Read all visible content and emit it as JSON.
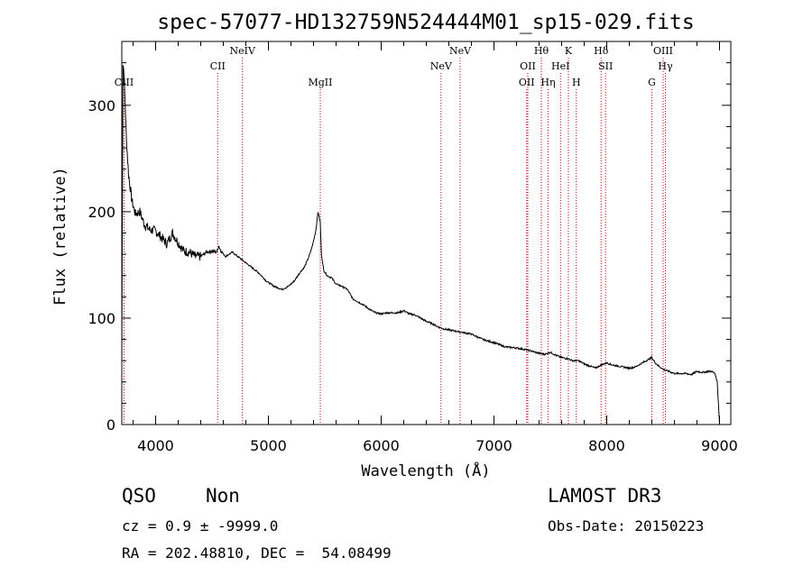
{
  "chart_data": {
    "type": "line",
    "title": "spec-57077-HD132759N524444M01_sp15-029.fits",
    "xlabel": "Wavelength (Å)",
    "ylabel": "Flux (relative)",
    "xlim": [
      3700,
      9100
    ],
    "ylim": [
      0,
      360
    ],
    "xticks": [
      4000,
      5000,
      6000,
      7000,
      8000,
      9000
    ],
    "yticks": [
      0,
      100,
      200,
      300
    ],
    "grid": false,
    "series": [
      {
        "name": "spectrum",
        "x": [
          3700,
          3710,
          3720,
          3730,
          3740,
          3760,
          3790,
          3820,
          3860,
          3900,
          3950,
          4000,
          4050,
          4100,
          4150,
          4200,
          4250,
          4300,
          4350,
          4400,
          4450,
          4500,
          4540,
          4560,
          4580,
          4620,
          4680,
          4740,
          4800,
          4860,
          4920,
          4980,
          5050,
          5120,
          5180,
          5230,
          5280,
          5320,
          5360,
          5390,
          5420,
          5440,
          5460,
          5470,
          5490,
          5520,
          5560,
          5600,
          5650,
          5700,
          5750,
          5800,
          5850,
          5900,
          5950,
          6000,
          6050,
          6100,
          6150,
          6200,
          6250,
          6300,
          6350,
          6400,
          6450,
          6500,
          6550,
          6600,
          6700,
          6800,
          6900,
          7000,
          7100,
          7200,
          7300,
          7400,
          7450,
          7500,
          7550,
          7600,
          7650,
          7700,
          7750,
          7800,
          7850,
          7900,
          7950,
          8000,
          8050,
          8100,
          8150,
          8200,
          8250,
          8300,
          8350,
          8400,
          8430,
          8460,
          8500,
          8550,
          8600,
          8650,
          8700,
          8750,
          8800,
          8850,
          8900,
          8930,
          8960,
          8980,
          8990,
          9000
        ],
        "y": [
          60,
          340,
          330,
          300,
          270,
          235,
          210,
          198,
          200,
          188,
          183,
          182,
          176,
          170,
          180,
          171,
          163,
          162,
          158,
          158,
          162,
          163,
          162,
          168,
          163,
          158,
          162,
          157,
          152,
          147,
          142,
          135,
          130,
          127,
          130,
          135,
          143,
          148,
          158,
          168,
          182,
          200,
          190,
          160,
          145,
          140,
          138,
          132,
          130,
          127,
          118,
          115,
          112,
          108,
          105,
          104,
          105,
          105,
          105,
          107,
          104,
          103,
          100,
          97,
          95,
          92,
          90,
          89,
          87,
          85,
          80,
          77,
          73,
          72,
          70,
          67,
          66,
          68,
          65,
          63,
          62,
          60,
          60,
          57,
          55,
          53,
          56,
          58,
          56,
          55,
          54,
          53,
          54,
          57,
          60,
          63,
          58,
          55,
          52,
          50,
          48,
          48,
          48,
          47,
          50,
          49,
          50,
          50,
          48,
          40,
          20,
          0
        ]
      }
    ],
    "emission_lines": [
      {
        "label": "CIII",
        "x": 3720,
        "row": 3
      },
      {
        "label": "CII",
        "x": 4550,
        "row": 2
      },
      {
        "label": "NeIV",
        "x": 4770,
        "row": 1
      },
      {
        "label": "MgII",
        "x": 5460,
        "row": 3
      },
      {
        "label": "NeV",
        "x": 6530,
        "row": 2
      },
      {
        "label": "NeV",
        "x": 6700,
        "row": 1
      },
      {
        "label": "OII",
        "x": 7300,
        "row": 2
      },
      {
        "label": "OII",
        "x": 7290,
        "row": 3
      },
      {
        "label": "Hθ",
        "x": 7420,
        "row": 1
      },
      {
        "label": "Hη",
        "x": 7480,
        "row": 3
      },
      {
        "label": "HeI",
        "x": 7590,
        "row": 2
      },
      {
        "label": "K",
        "x": 7660,
        "row": 1
      },
      {
        "label": "H",
        "x": 7730,
        "row": 3
      },
      {
        "label": "Hδ",
        "x": 7950,
        "row": 1
      },
      {
        "label": "SII",
        "x": 7990,
        "row": 2
      },
      {
        "label": "OIII",
        "x": 8500,
        "row": 1
      },
      {
        "label": "Hγ",
        "x": 8520,
        "row": 2
      },
      {
        "label": "G",
        "x": 8400,
        "row": 3
      }
    ],
    "colors": {
      "line": "#000000",
      "markers": "#cc0000",
      "axis": "#000000"
    }
  },
  "info": {
    "class": "QSO",
    "subclass": "Non",
    "survey": "LAMOST DR3",
    "cz": "cz = 0.9 ± -9999.0",
    "obs_date": "Obs-Date: 20150223",
    "coords": "RA = 202.48810, DEC =  54.08499"
  }
}
